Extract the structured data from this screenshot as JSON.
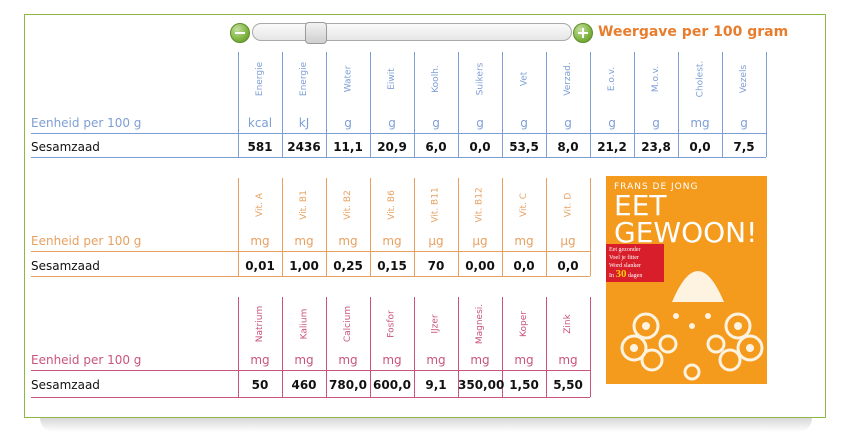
{
  "zoom": {
    "minus_icon": "minus-icon",
    "plus_icon": "plus-icon",
    "slider_value": 0.2,
    "label": "Weergave per 100 gram"
  },
  "colors": {
    "border": "#8cb847",
    "accent_orange": "#e87d2e",
    "macro": "#7e9ed6",
    "vitamin": "#e8a060",
    "mineral": "#c9557a"
  },
  "sections": [
    {
      "key": "macro",
      "unit_label": "Eenheid per 100 g",
      "row_label": "Sesamzaad",
      "headers": [
        "Energie",
        "Energie",
        "Water",
        "Eiwit",
        "Koolh.",
        "Suikers",
        "Vet",
        "Verzad.",
        "E.o.v.",
        "M.o.v.",
        "Cholest.",
        "Vezels"
      ],
      "units": [
        "kcal",
        "kJ",
        "g",
        "g",
        "g",
        "g",
        "g",
        "g",
        "g",
        "g",
        "mg",
        "g"
      ],
      "values": [
        "581",
        "2436",
        "11,1",
        "20,9",
        "6,0",
        "0,0",
        "53,5",
        "8,0",
        "21,2",
        "23,8",
        "0,0",
        "7,5"
      ]
    },
    {
      "key": "vitamin",
      "unit_label": "Eenheid per 100 g",
      "row_label": "Sesamzaad",
      "headers": [
        "Vit. A",
        "Vit. B1",
        "Vit. B2",
        "Vit. B6",
        "Vit. B11",
        "Vit. B12",
        "Vit. C",
        "Vit. D"
      ],
      "units": [
        "mg",
        "mg",
        "mg",
        "mg",
        "µg",
        "µg",
        "mg",
        "µg"
      ],
      "values": [
        "0,01",
        "1,00",
        "0,25",
        "0,15",
        "70",
        "0,00",
        "0,0",
        "0,0"
      ]
    },
    {
      "key": "mineral",
      "unit_label": "Eenheid per 100 g",
      "row_label": "Sesamzaad",
      "headers": [
        "Natrium",
        "Kalium",
        "Calcium",
        "Fosfor",
        "IJzer",
        "Magnesi.",
        "Koper",
        "Zink"
      ],
      "units": [
        "mg",
        "mg",
        "mg",
        "mg",
        "mg",
        "mg",
        "mg",
        "mg"
      ],
      "values": [
        "50",
        "460",
        "780,0",
        "600,0",
        "9,1",
        "350,00",
        "1,50",
        "5,50"
      ]
    }
  ],
  "book": {
    "author": "FRANS DE JONG",
    "title_line1": "EET",
    "title_line2": "GEWOON!",
    "tag_line1": "Eet gezonder",
    "tag_line2": "Voel je fitter",
    "tag_line3": "Word slanker",
    "tag_line4": "In",
    "tag_number": "30",
    "tag_line5": "dagen"
  }
}
